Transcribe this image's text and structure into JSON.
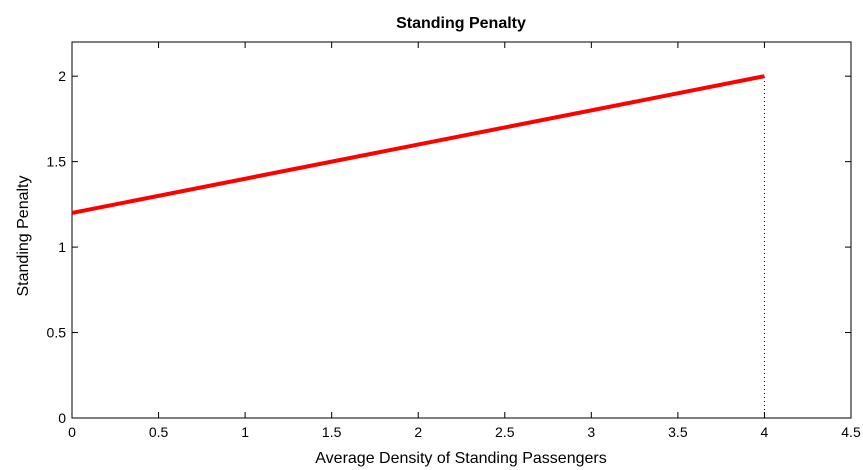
{
  "chart_data": {
    "type": "line",
    "title": "Standing Penalty",
    "xlabel": "Average Density of Standing Passengers",
    "ylabel": "Standing Penalty",
    "xlim": [
      0,
      4.5
    ],
    "ylim": [
      0,
      2.2
    ],
    "xticks": [
      0,
      0.5,
      1,
      1.5,
      2,
      2.5,
      3,
      3.5,
      4,
      4.5
    ],
    "xtick_labels": [
      "0",
      "0.5",
      "1",
      "1.5",
      "2",
      "2.5",
      "3",
      "3.5",
      "4",
      "4.5"
    ],
    "yticks": [
      0,
      0.5,
      1,
      1.5,
      2
    ],
    "ytick_labels": [
      "0",
      "0.5",
      "1",
      "1.5",
      "2"
    ],
    "grid": false,
    "series": [
      {
        "x": [
          0,
          4
        ],
        "y": [
          1.2,
          2.0
        ],
        "color": "#ff0000"
      }
    ],
    "reference_lines": [
      {
        "orientation": "vertical",
        "x": 4,
        "y_range": [
          0,
          2.0
        ],
        "style": "dotted",
        "color": "#000000"
      }
    ]
  }
}
